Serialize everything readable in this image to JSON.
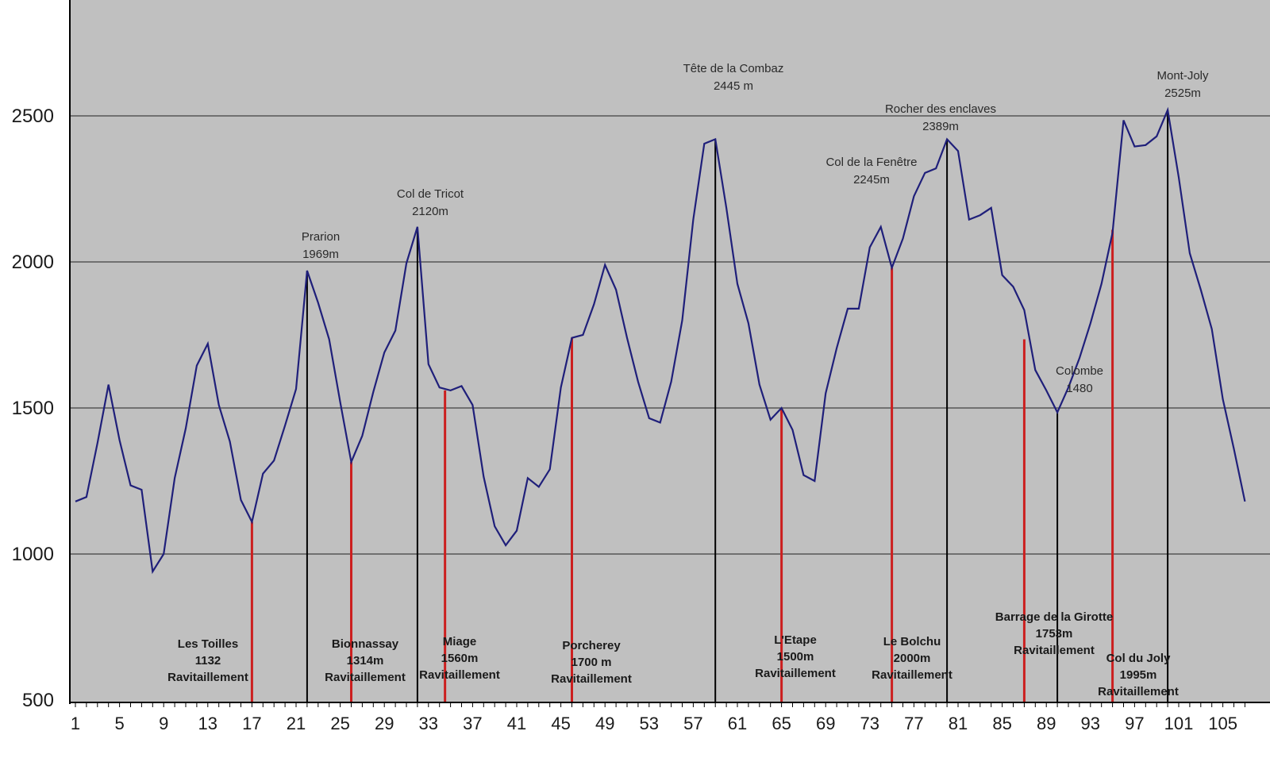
{
  "chart_data": {
    "type": "line",
    "title": "",
    "xlabel": "",
    "ylabel": "",
    "xlim": [
      1,
      107
    ],
    "ylim": [
      500,
      2900
    ],
    "grid": true,
    "colors": {
      "plot_bg": "#c0c0c0",
      "line": "#1f1f7a",
      "peak_marker": "#000000",
      "station_marker": "#cc1f1f",
      "grid": "#404040"
    },
    "y_ticks": [
      500,
      1000,
      1500,
      2000,
      2500
    ],
    "x_ticks": [
      1,
      5,
      9,
      13,
      17,
      21,
      25,
      29,
      33,
      37,
      41,
      45,
      49,
      53,
      57,
      61,
      65,
      69,
      73,
      77,
      81,
      85,
      89,
      93,
      97,
      101,
      105
    ],
    "series": [
      {
        "x": [
          1,
          2,
          3,
          4,
          5,
          6,
          7,
          8,
          9,
          10,
          11,
          12,
          13,
          14,
          15,
          16,
          17,
          18,
          19,
          20,
          21,
          22,
          23,
          24,
          25,
          26,
          27,
          28,
          29,
          30,
          31,
          32,
          33,
          34,
          35,
          36,
          37,
          38,
          39,
          40,
          41,
          42,
          43,
          44,
          45,
          46,
          47,
          48,
          49,
          50,
          51,
          52,
          53,
          54,
          55,
          56,
          57,
          58,
          59,
          60,
          61,
          62,
          63,
          64,
          65,
          66,
          67,
          68,
          69,
          70,
          71,
          72,
          73,
          74,
          75,
          76,
          77,
          78,
          79,
          80,
          81,
          82,
          83,
          84,
          85,
          86,
          87,
          88,
          89,
          90,
          91,
          92,
          93,
          94,
          95,
          96,
          97,
          98,
          99,
          100,
          101,
          102,
          103,
          104,
          105,
          106,
          107
        ],
        "values": [
          1180,
          1195,
          1380,
          1580,
          1390,
          1235,
          1220,
          940,
          1000,
          1260,
          1430,
          1645,
          1720,
          1510,
          1385,
          1185,
          1110,
          1275,
          1320,
          1440,
          1565,
          1970,
          1860,
          1735,
          1520,
          1315,
          1405,
          1555,
          1690,
          1765,
          1995,
          2120,
          1650,
          1570,
          1560,
          1575,
          1510,
          1265,
          1095,
          1030,
          1080,
          1260,
          1230,
          1290,
          1570,
          1740,
          1750,
          1855,
          1990,
          1905,
          1740,
          1590,
          1465,
          1450,
          1590,
          1800,
          2145,
          2405,
          2420,
          2185,
          1925,
          1790,
          1580,
          1460,
          1500,
          1425,
          1270,
          1250,
          1550,
          1705,
          1840,
          1840,
          2050,
          2120,
          1980,
          2080,
          2225,
          2305,
          2320,
          2420,
          2380,
          2145,
          2160,
          2185,
          1955,
          1915,
          1835,
          1630,
          1560,
          1485,
          1570,
          1670,
          1790,
          1925,
          2100,
          2485,
          2395,
          2400,
          2430,
          2520,
          2290,
          2030,
          1905,
          1770,
          1530,
          1360,
          1180
        ]
      }
    ],
    "peak_markers": [
      {
        "x": 22,
        "y": 1970,
        "name": "Prarion",
        "alt": "1969m"
      },
      {
        "x": 32,
        "y": 2120,
        "name": "Col de Tricot",
        "alt": "2120m"
      },
      {
        "x": 59,
        "y": 2420,
        "name": "Tête de la Combaz",
        "alt": "2445  m"
      },
      {
        "x": 80,
        "y": 2420,
        "name": "Rocher des enclaves",
        "alt": "2389m"
      },
      {
        "x": 90,
        "y": 1485,
        "name": "Colombe",
        "alt": "1480"
      },
      {
        "x": 100,
        "y": 2520,
        "name": "Mont-Joly",
        "alt": "2525m"
      }
    ],
    "station_markers": [
      {
        "x": 17,
        "y": 1110,
        "lines": [
          "Les Toilles",
          "1132",
          "Ravitaillement"
        ]
      },
      {
        "x": 26,
        "y": 1315,
        "lines": [
          "Bionnassay",
          "1314m",
          "Ravitaillement"
        ]
      },
      {
        "x": 34.5,
        "y": 1560,
        "lines": [
          "Miage",
          "1560m",
          "Ravitaillement"
        ]
      },
      {
        "x": 46,
        "y": 1740,
        "lines": [
          "Porcherey",
          "1700  m",
          "Ravitaillement"
        ]
      },
      {
        "x": 65,
        "y": 1500,
        "lines": [
          "L'Etape",
          "1500m",
          "Ravitaillement"
        ]
      },
      {
        "x": 75,
        "y": 1980,
        "lines": [
          "Le Bolchu",
          "2000m",
          "Ravitaillement"
        ]
      },
      {
        "x": 87,
        "y": 1735,
        "lines": [
          "Barrage de la Girotte",
          "1753m",
          "Ravitaillement"
        ]
      },
      {
        "x": 95,
        "y": 2110,
        "lines": [
          "Col du Joly",
          "1995m",
          "Ravitaillement"
        ]
      }
    ],
    "peak_labels": [
      {
        "lines": [
          "Prarion",
          "1969m"
        ]
      },
      {
        "lines": [
          "Col de Tricot",
          "2120m"
        ]
      },
      {
        "lines": [
          "Tête de la Combaz",
          "2445  m"
        ]
      },
      {
        "lines": [
          "Rocher des enclaves",
          "2389m"
        ]
      },
      {
        "lines": [
          "Col de la Fenêtre",
          "2245m"
        ]
      },
      {
        "lines": [
          "Colombe",
          "1480"
        ]
      },
      {
        "lines": [
          "Mont-Joly",
          "2525m"
        ]
      }
    ]
  }
}
